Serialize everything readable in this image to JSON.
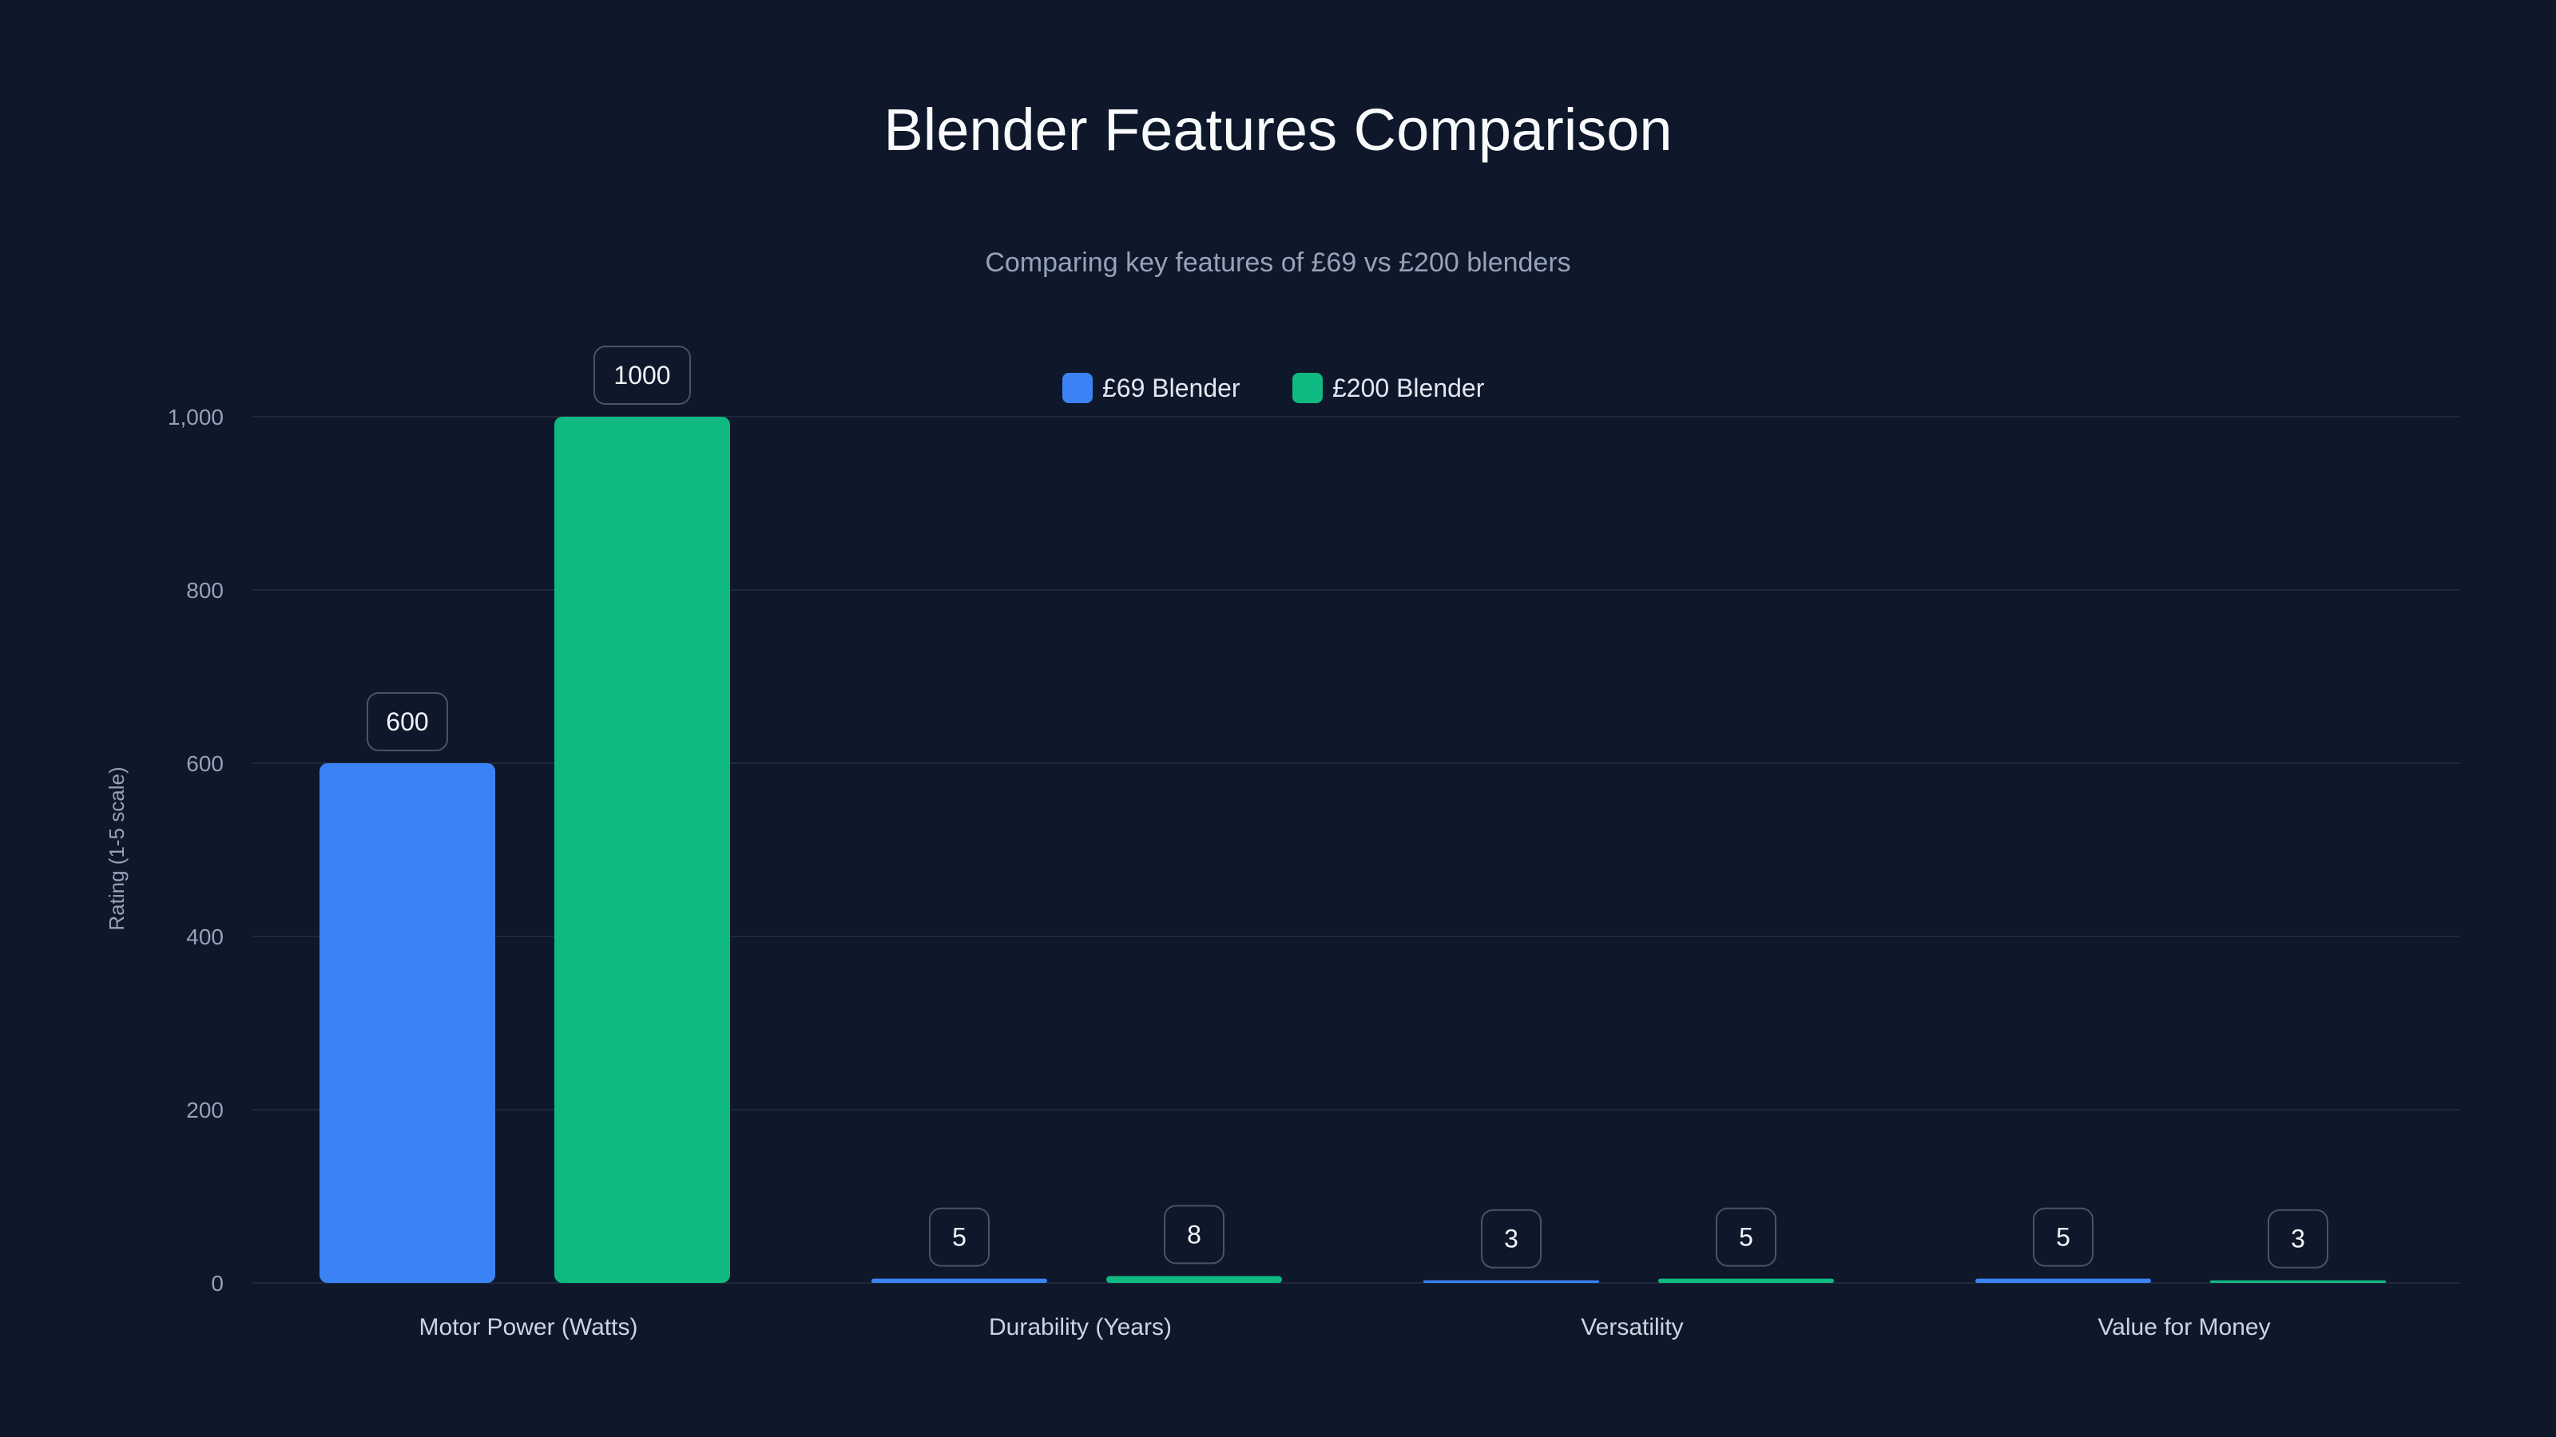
{
  "chart_data": {
    "type": "bar",
    "title": "Blender Features Comparison",
    "subtitle": "Comparing key features of £69 vs £200 blenders",
    "xlabel": "",
    "ylabel": "Rating (1-5 scale)",
    "ylim": [
      0,
      1000
    ],
    "yticks": [
      0,
      200,
      400,
      600,
      800,
      1000
    ],
    "ytick_labels": [
      "0",
      "200",
      "400",
      "600",
      "800",
      "1,000"
    ],
    "grid": true,
    "legend_position": "top-center",
    "categories": [
      "Motor Power (Watts)",
      "Durability (Years)",
      "Versatility",
      "Value for Money"
    ],
    "series": [
      {
        "name": "£69 Blender",
        "color": "#3b82f6",
        "values": [
          600,
          5,
          3,
          5
        ]
      },
      {
        "name": "£200 Blender",
        "color": "#10b981",
        "values": [
          1000,
          8,
          5,
          3
        ]
      }
    ],
    "data_labels": true
  }
}
